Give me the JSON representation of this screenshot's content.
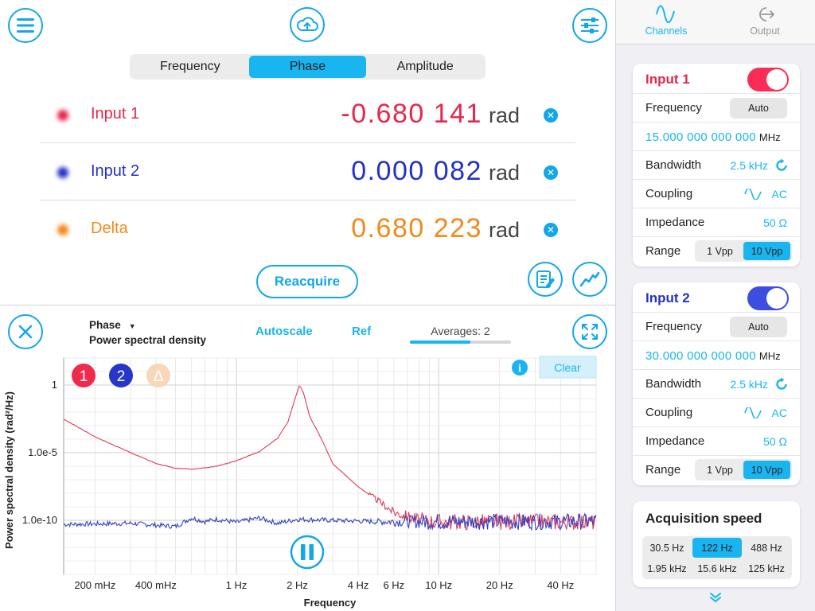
{
  "header": {
    "segments": [
      "Frequency",
      "Phase",
      "Amplitude"
    ],
    "active_segment": 1
  },
  "readings": [
    {
      "label": "Input 1",
      "value": "-0.680 141",
      "unit": "rad",
      "color": "#e8264a"
    },
    {
      "label": "Input 2",
      "value": "0.000 082",
      "unit": "rad",
      "color": "#2231c9"
    },
    {
      "label": "Delta",
      "value": "0.680 223",
      "unit": "rad",
      "color": "#f2891b"
    }
  ],
  "reacquire_label": "Reacquire",
  "plot_controls": {
    "measure": "Phase",
    "mode": "Power spectral density",
    "autoscale": "Autoscale",
    "ref": "Ref",
    "averages_label": "Averages: 2",
    "averages_progress": 0.6
  },
  "chart_overlay": {
    "badges": [
      "1",
      "2",
      "Δ"
    ],
    "clear": "Clear"
  },
  "chart_data": {
    "type": "line",
    "xlabel": "Frequency",
    "ylabel": "Power spectral density (rad²/Hz)",
    "x_scale": "log",
    "y_scale": "log",
    "xlim_hz": [
      0.14,
      60
    ],
    "ylim": [
      1e-14,
      100
    ],
    "x_ticks": [
      {
        "v": 0.2,
        "label": "200 mHz"
      },
      {
        "v": 0.4,
        "label": "400 mHz"
      },
      {
        "v": 1,
        "label": "1 Hz"
      },
      {
        "v": 2,
        "label": "2 Hz"
      },
      {
        "v": 4,
        "label": "4 Hz"
      },
      {
        "v": 6,
        "label": "6 Hz"
      },
      {
        "v": 10,
        "label": "10 Hz"
      },
      {
        "v": 20,
        "label": "20 Hz"
      },
      {
        "v": 40,
        "label": "40 Hz"
      }
    ],
    "y_ticks": [
      {
        "v": 1,
        "label": "1"
      },
      {
        "v": 1e-05,
        "label": "1.0e-5"
      },
      {
        "v": 1e-10,
        "label": "1.0e-10"
      }
    ],
    "grid": true,
    "series": [
      {
        "color": "#e03a55",
        "points": [
          [
            0.14,
            0.003
          ],
          [
            0.2,
            0.00015
          ],
          [
            0.3,
            1e-05
          ],
          [
            0.4,
            1.6e-06
          ],
          [
            0.5,
            7e-07
          ],
          [
            0.6,
            6e-07
          ],
          [
            0.8,
            1e-06
          ],
          [
            1.0,
            2.5e-06
          ],
          [
            1.3,
            1.2e-05
          ],
          [
            1.6,
            0.00012
          ],
          [
            1.8,
            0.002
          ],
          [
            1.95,
            0.1
          ],
          [
            2.05,
            1.0
          ],
          [
            2.15,
            0.25
          ],
          [
            2.3,
            0.005
          ],
          [
            2.6,
            0.00015
          ],
          [
            3,
            1.5e-06
          ],
          [
            4,
            3e-08
          ],
          [
            5,
            3e-09
          ],
          [
            6,
            4e-10
          ],
          [
            7,
            2e-10
          ],
          [
            8,
            1e-10
          ],
          [
            10,
            8e-11
          ],
          [
            20,
            8e-11
          ],
          [
            60,
            8e-11
          ]
        ]
      },
      {
        "color": "#3442c2",
        "points": [
          [
            0.14,
            5e-11
          ],
          [
            0.3,
            6e-11
          ],
          [
            0.5,
            3.5e-11
          ],
          [
            0.6,
            1.5e-10
          ],
          [
            0.7,
            8e-11
          ],
          [
            0.8,
            1.2e-10
          ],
          [
            1,
            7e-11
          ],
          [
            1.3,
            1.5e-10
          ],
          [
            1.6,
            6e-11
          ],
          [
            2,
            1.2e-10
          ],
          [
            3,
            1e-10
          ],
          [
            5,
            8e-11
          ],
          [
            10,
            8e-11
          ],
          [
            60,
            8e-11
          ]
        ]
      }
    ]
  },
  "sidebar": {
    "tabs": [
      {
        "label": "Channels",
        "active": true
      },
      {
        "label": "Output",
        "active": false
      }
    ],
    "channels": [
      {
        "title": "Input 1",
        "color": "#e8264a",
        "toggle_color": "#fb2c56",
        "enabled": true,
        "frequency_label": "Frequency",
        "auto": "Auto",
        "frequency_value": "15.000 000 000 000",
        "frequency_unit": "MHz",
        "bandwidth_label": "Bandwidth",
        "bandwidth": "2.5 kHz",
        "coupling_label": "Coupling",
        "coupling": "AC",
        "impedance_label": "Impedance",
        "impedance": "50 Ω",
        "range_label": "Range",
        "ranges": [
          "1 Vpp",
          "10 Vpp"
        ],
        "range_active": 1
      },
      {
        "title": "Input 2",
        "color": "#2231c9",
        "toggle_color": "#3d4de0",
        "enabled": true,
        "frequency_label": "Frequency",
        "auto": "Auto",
        "frequency_value": "30.000 000 000 000",
        "frequency_unit": "MHz",
        "bandwidth_label": "Bandwidth",
        "bandwidth": "2.5 kHz",
        "coupling_label": "Coupling",
        "coupling": "AC",
        "impedance_label": "Impedance",
        "impedance": "50 Ω",
        "range_label": "Range",
        "ranges": [
          "1 Vpp",
          "10 Vpp"
        ],
        "range_active": 1
      }
    ],
    "acquisition": {
      "title": "Acquisition speed",
      "options": [
        "30.5 Hz",
        "122 Hz",
        "488 Hz",
        "1.95 kHz",
        "15.6 kHz",
        "125 kHz"
      ],
      "active": 1
    },
    "accent": "#19b5f0"
  }
}
